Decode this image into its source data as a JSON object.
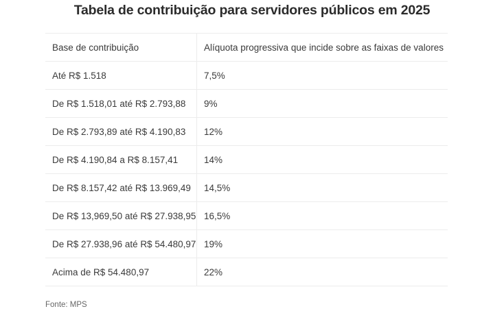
{
  "title": "Tabela de contribuição para servidores públicos em 2025",
  "table": {
    "headers": [
      "Base de contribuição",
      "Alíquota progressiva que incide sobre as faixas de valores"
    ],
    "rows": [
      [
        "Até R$ 1.518",
        "7,5%"
      ],
      [
        "De R$ 1.518,01 até R$ 2.793,88",
        "9%"
      ],
      [
        "De R$ 2.793,89 até R$ 4.190,83",
        "12%"
      ],
      [
        "De R$ 4.190,84 a R$ 8.157,41",
        "14%"
      ],
      [
        "De R$ 8.157,42 até R$ 13.969,49",
        "14,5%"
      ],
      [
        "De R$ 13,969,50 até R$ 27.938,95",
        "16,5%"
      ],
      [
        "De R$ 27.938,96 até R$ 54.480,97",
        "19%"
      ],
      [
        "Acima de R$ 54.480,97",
        "22%"
      ]
    ]
  },
  "source": "Fonte: MPS"
}
